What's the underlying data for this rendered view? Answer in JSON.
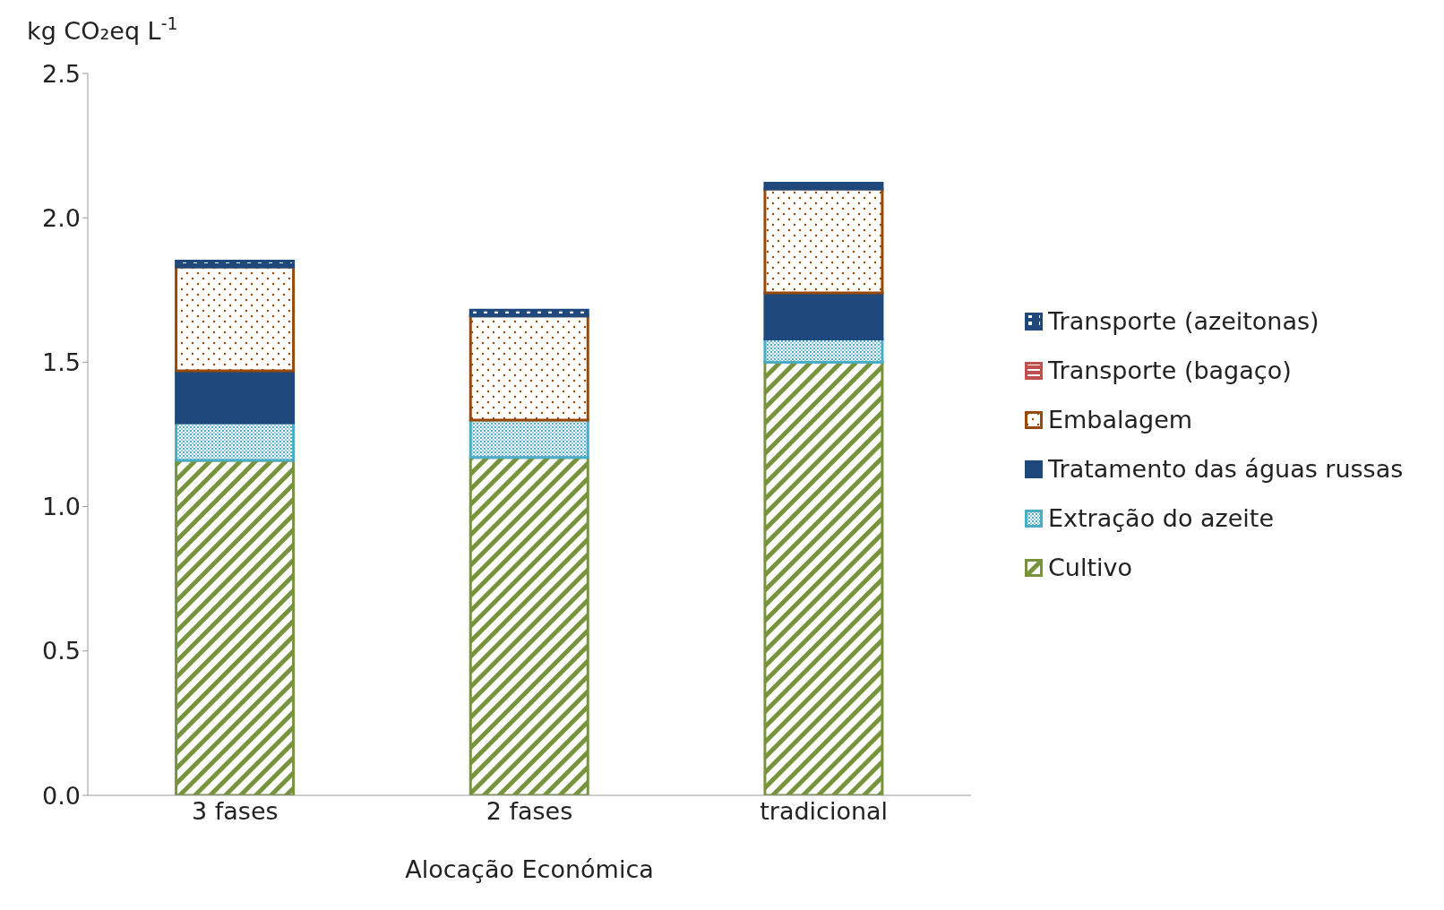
{
  "chart_data": {
    "type": "bar",
    "ylabel": "kg CO₂eq L$^{-1}$",
    "xlabel": "Alocação Económica",
    "categories": [
      "3 fases",
      "2 fases",
      "tradicional"
    ],
    "stacked": true,
    "series": [
      {
        "name": "Cultivo",
        "color": "#77933c",
        "values": [
          1.16,
          1.17,
          1.5
        ]
      },
      {
        "name": "Extração do azeite",
        "color": "#4bacc6",
        "values": [
          0.13,
          0.13,
          0.08
        ]
      },
      {
        "name": "Tratamento das águas russas",
        "color": "#1f497d",
        "values": [
          0.18,
          0,
          0.16
        ]
      },
      {
        "name": "Embalagem",
        "color": "#984807",
        "values": [
          0.36,
          0.36,
          0.36
        ]
      },
      {
        "name": "Transporte (bagaço)",
        "color": "#c0504d",
        "values": [
          0,
          0,
          0
        ]
      },
      {
        "name": "Transporte (azeitonas)",
        "color": "#1f497d",
        "values": [
          0.02,
          0.02,
          0.02
        ]
      }
    ],
    "ylim": [
      0,
      2.5
    ],
    "yticks": [
      {
        "value": 0,
        "label": "0.0"
      },
      {
        "value": 0.5,
        "label": "0.5"
      },
      {
        "value": 1,
        "label": "1.0"
      },
      {
        "value": 1.5,
        "label": "1.5"
      },
      {
        "value": 2,
        "label": "2.0"
      },
      {
        "value": 2.5,
        "label": "2.5"
      }
    ],
    "grid": false,
    "legend": "right"
  }
}
